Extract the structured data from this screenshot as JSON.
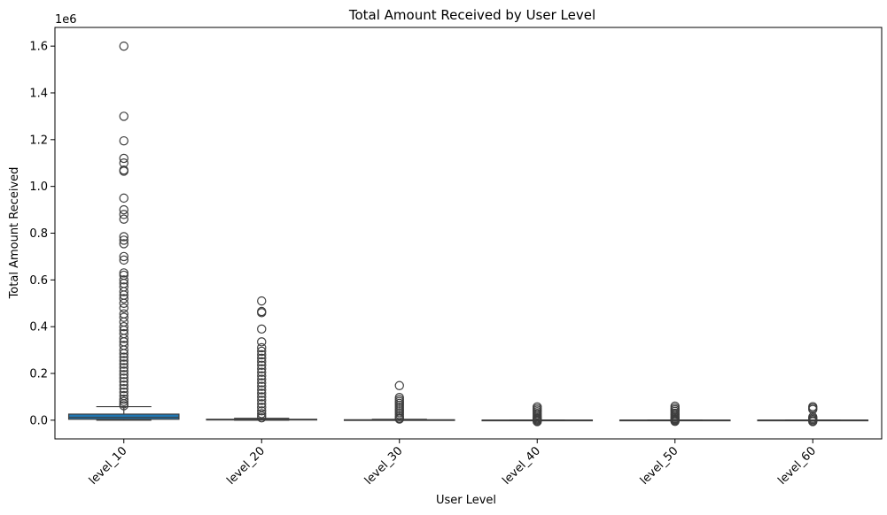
{
  "chart_data": {
    "type": "box",
    "title": "Total Amount Received by User Level",
    "xlabel": "User Level",
    "ylabel": "Total Amount Received",
    "y_offset_label": "1e6",
    "ylim": [
      -0.08,
      1.68
    ],
    "yticks": [
      0.0,
      0.2,
      0.4,
      0.6,
      0.8,
      1.0,
      1.2,
      1.4,
      1.6
    ],
    "ytick_labels": [
      "0.0",
      "0.2",
      "0.4",
      "0.6",
      "0.8",
      "1.0",
      "1.2",
      "1.4",
      "1.6"
    ],
    "categories": [
      "level_10",
      "level_20",
      "level_30",
      "level_40",
      "level_50",
      "level_60"
    ],
    "xtick_rotation": 45,
    "grid": false,
    "box_color": "#1f77b4",
    "line_color": "#3d3d3d",
    "boxes": [
      {
        "category": "level_10",
        "whisker_low": 0.0,
        "q1": 0.004,
        "median": 0.012,
        "q3": 0.026,
        "whisker_high": 0.058,
        "outliers": [
          1.6,
          1.3,
          1.195,
          1.12,
          1.1,
          1.07,
          1.065,
          0.95,
          0.9,
          0.88,
          0.86,
          0.785,
          0.77,
          0.755,
          0.7,
          0.685,
          0.63,
          0.62,
          0.6,
          0.585,
          0.57,
          0.55,
          0.535,
          0.52,
          0.5,
          0.48,
          0.455,
          0.44,
          0.42,
          0.4,
          0.385,
          0.37,
          0.35,
          0.335,
          0.32,
          0.3,
          0.285,
          0.27,
          0.255,
          0.24,
          0.225,
          0.21,
          0.195,
          0.18,
          0.165,
          0.15,
          0.135,
          0.12,
          0.105,
          0.09,
          0.08,
          0.07,
          0.062
        ]
      },
      {
        "category": "level_20",
        "whisker_low": 0.0,
        "q1": 0.001,
        "median": 0.002,
        "q3": 0.004,
        "whisker_high": 0.008,
        "outliers": [
          0.51,
          0.465,
          0.46,
          0.39,
          0.335,
          0.31,
          0.295,
          0.28,
          0.265,
          0.25,
          0.235,
          0.22,
          0.205,
          0.19,
          0.175,
          0.16,
          0.145,
          0.13,
          0.115,
          0.1,
          0.085,
          0.07,
          0.055,
          0.04,
          0.028,
          0.018,
          0.01
        ]
      },
      {
        "category": "level_30",
        "whisker_low": 0.0,
        "q1": 0.0005,
        "median": 0.001,
        "q3": 0.002,
        "whisker_high": 0.004,
        "outliers": [
          0.148,
          0.097,
          0.088,
          0.08,
          0.072,
          0.064,
          0.056,
          0.048,
          0.04,
          0.032,
          0.024,
          0.016,
          0.009,
          0.005
        ]
      },
      {
        "category": "level_40",
        "whisker_low": 0.0,
        "q1": 0.0,
        "median": 0.0,
        "q3": 0.0005,
        "whisker_high": 0.001,
        "outliers": [
          0.057,
          0.05,
          0.043,
          0.036,
          0.029,
          0.022,
          0.016,
          0.01,
          0.006,
          0.002,
          -0.002,
          -0.006
        ]
      },
      {
        "category": "level_50",
        "whisker_low": 0.0,
        "q1": 0.0,
        "median": 0.0,
        "q3": 0.0005,
        "whisker_high": 0.001,
        "outliers": [
          0.06,
          0.052,
          0.045,
          0.038,
          0.03,
          0.024,
          0.018,
          0.012,
          0.007,
          0.003,
          -0.001,
          -0.005
        ]
      },
      {
        "category": "level_60",
        "whisker_low": 0.0,
        "q1": 0.0,
        "median": 0.0,
        "q3": 0.0005,
        "whisker_high": 0.001,
        "outliers": [
          0.058,
          0.052,
          0.046,
          0.014,
          0.008,
          0.003,
          -0.002,
          -0.006
        ]
      }
    ]
  }
}
